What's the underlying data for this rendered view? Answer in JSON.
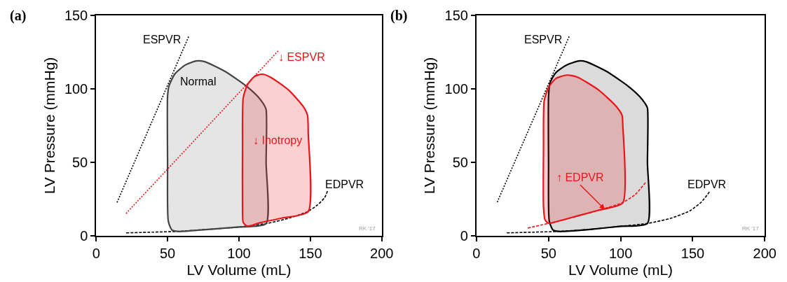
{
  "chart_data": [
    {
      "type": "line",
      "xlabel": "LV Volume (mL)",
      "ylabel": "LV Pressure (mmHg)",
      "xlim": [
        0,
        200
      ],
      "ylim": [
        0,
        150
      ],
      "xticks": [
        0,
        50,
        100,
        150,
        200
      ],
      "yticks": [
        0,
        50,
        100,
        150
      ],
      "marker": "none",
      "series": [
        {
          "color": "#000000",
          "line_style": "dotted",
          "x": [
            14.6,
            64.8
          ],
          "values": [
            22.7,
            135.7
          ]
        },
        {
          "color": "#000000",
          "line_style": "dashed",
          "x": [
            21,
            40,
            57,
            80,
            100,
            120,
            135,
            148,
            155,
            160,
            162
          ],
          "values": [
            2,
            2.5,
            3,
            4.5,
            6,
            8.5,
            12,
            16.5,
            21,
            26,
            30.4
          ]
        },
        {
          "type": "area",
          "color": "#444444",
          "line_style": "solid",
          "x": [
            57,
            53,
            50.5,
            50,
            50,
            51,
            55,
            62,
            70,
            76,
            90,
            105,
            113,
            117,
            119,
            119,
            119,
            100,
            80,
            60,
            57
          ],
          "values": [
            3,
            4,
            10,
            50,
            95,
            102,
            110,
            116,
            119,
            118.5,
            112,
            102,
            95,
            90,
            86,
            50,
            8.3,
            6,
            4.5,
            3,
            3
          ]
        },
        {
          "type": "area",
          "color": "#e8161b",
          "line_style": "solid",
          "x": [
            106,
            103,
            102.5,
            102.5,
            103,
            106,
            111,
            116,
            122,
            135,
            145,
            148,
            148.5,
            148.5,
            130,
            115,
            106
          ],
          "values": [
            6.5,
            9,
            20,
            60,
            94,
            103,
            108.5,
            110,
            108,
            99,
            88,
            82,
            70,
            16.5,
            12,
            9,
            6.5
          ]
        },
        {
          "color": "#e8161b",
          "line_style": "dotted",
          "x": [
            20.9,
            128
          ],
          "values": [
            15.2,
            126.4
          ]
        }
      ],
      "annotations": [
        "(a)",
        "ESPVR",
        "↓ ESPVR",
        "Normal",
        "↓ Inotropy",
        "EDPVR",
        "RK '17"
      ]
    },
    {
      "type": "line",
      "xlabel": "LV Volume (mL)",
      "ylabel": "LV Pressure (mmHg)",
      "xlim": [
        0,
        200
      ],
      "ylim": [
        0,
        150
      ],
      "xticks": [
        0,
        50,
        100,
        150,
        200
      ],
      "yticks": [
        0,
        50,
        100,
        150
      ],
      "marker": "none",
      "series": [
        {
          "color": "#000000",
          "line_style": "dotted",
          "x": [
            14.4,
            64.4
          ],
          "values": [
            22.9,
            135.9
          ]
        },
        {
          "color": "#000000",
          "line_style": "dashed",
          "x": [
            21,
            40,
            57,
            80,
            100,
            119,
            135,
            148,
            156,
            162
          ],
          "values": [
            2,
            2.5,
            3,
            4.5,
            6.5,
            8.5,
            12,
            17,
            23,
            30.4
          ]
        },
        {
          "type": "area",
          "color": "#000000",
          "line_style": "solid",
          "x": [
            57,
            53,
            50.5,
            50,
            50,
            51,
            55,
            62,
            71,
            76,
            90,
            105,
            113,
            117,
            118.6,
            118.6,
            118.6,
            100,
            80,
            60,
            57
          ],
          "values": [
            3,
            4,
            10,
            50,
            95,
            104,
            111,
            116,
            119,
            118.5,
            112,
            102,
            95,
            90,
            87,
            50,
            8.5,
            6.5,
            4.5,
            3,
            3
          ]
        },
        {
          "color": "#e8161b",
          "line_style": "dashed",
          "x": [
            35.6,
            50,
            55,
            70,
            85,
            101,
            110,
            117.3
          ],
          "values": [
            5.3,
            8.5,
            9.5,
            13.5,
            17.5,
            22.4,
            28,
            36.2
          ]
        },
        {
          "type": "area",
          "color": "#e8161b",
          "line_style": "solid",
          "x": [
            50,
            47.5,
            46.5,
            46.5,
            47,
            50,
            55,
            62.8,
            70,
            85,
            97,
            101,
            101.5,
            101.5,
            85,
            70,
            55,
            50
          ],
          "values": [
            8.5,
            11,
            20,
            60,
            92,
            101,
            107,
            109.4,
            108,
            99,
            88,
            82,
            75,
            22.4,
            17.5,
            13.5,
            9.5,
            8.5
          ]
        }
      ],
      "annotations": [
        "(b)",
        "ESPVR",
        {
          "text": "↑ EDPVR",
          "x": 89,
          "y": 18
        },
        "EDPVR",
        "RK '17"
      ]
    }
  ]
}
